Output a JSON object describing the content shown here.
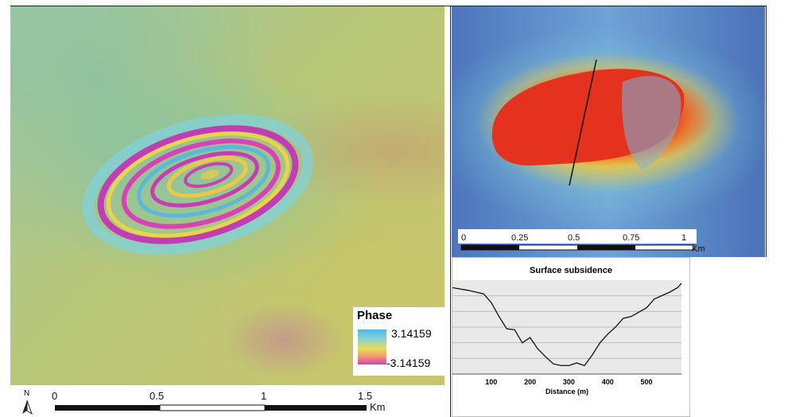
{
  "left_panel": {
    "north_label": "N",
    "scale_labels": [
      "0",
      "0.5",
      "1",
      "1.5"
    ],
    "scale_unit": "Km",
    "legend": {
      "title": "Phase",
      "max": "3.14159",
      "min": "-3.14159"
    }
  },
  "right_panel": {
    "scale_labels": [
      "0",
      "0.25",
      "0.5",
      "0.75",
      "1"
    ],
    "scale_unit": "Km"
  },
  "profile_chart": {
    "title": "Surface subsidence",
    "xlabel": "Distance (m)",
    "x_ticks": [
      "100",
      "200",
      "300",
      "400",
      "500"
    ]
  },
  "chart_data": {
    "type": "line",
    "title": "Surface subsidence",
    "xlabel": "Distance (m)",
    "ylabel": "",
    "xlim": [
      0,
      590
    ],
    "x": [
      0,
      40,
      80,
      100,
      120,
      140,
      160,
      180,
      200,
      220,
      240,
      260,
      280,
      300,
      320,
      340,
      360,
      380,
      400,
      420,
      440,
      460,
      480,
      500,
      520,
      540,
      560,
      580,
      590
    ],
    "y": [
      0.95,
      0.92,
      0.88,
      0.78,
      0.62,
      0.48,
      0.47,
      0.32,
      0.38,
      0.25,
      0.16,
      0.08,
      0.06,
      0.06,
      0.09,
      0.06,
      0.18,
      0.32,
      0.42,
      0.5,
      0.6,
      0.62,
      0.67,
      0.72,
      0.82,
      0.86,
      0.9,
      0.95,
      1.0
    ],
    "grid": true
  }
}
